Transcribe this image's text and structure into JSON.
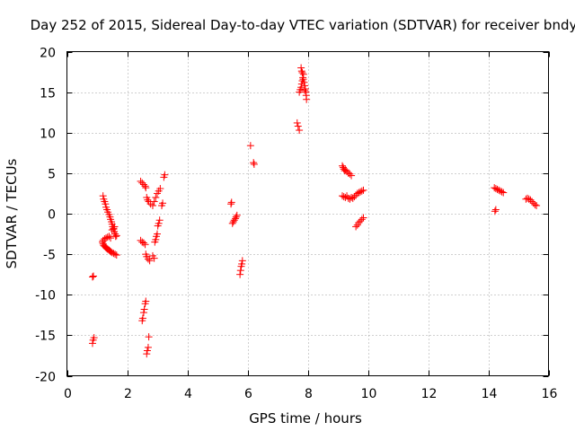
{
  "chart_data": {
    "type": "scatter",
    "title": "Day 252 of 2015, Sidereal Day-to-day VTEC variation (SDTVAR) for receiver bndy",
    "xlabel": "GPS time / hours",
    "ylabel": "SDTVAR / TECUs",
    "xlim": [
      0,
      16
    ],
    "ylim": [
      -20,
      20
    ],
    "xticks": [
      0,
      2,
      4,
      6,
      8,
      10,
      12,
      14,
      16
    ],
    "yticks": [
      -20,
      -15,
      -10,
      -5,
      0,
      5,
      10,
      15,
      20
    ],
    "xtick_labels": [
      "0",
      "2",
      "4",
      "6",
      "8",
      "10",
      "12",
      "14",
      "16"
    ],
    "ytick_labels": [
      "-20",
      "-15",
      "-10",
      "-5",
      "0",
      "5",
      "10",
      "15",
      "20"
    ],
    "grid": true,
    "marker": "+",
    "color": "#ff0000",
    "series": [
      {
        "name": "SDTVAR",
        "points": [
          [
            0.85,
            -7.8
          ],
          [
            0.88,
            -7.7
          ],
          [
            0.85,
            -16.0
          ],
          [
            0.87,
            -15.6
          ],
          [
            0.9,
            -15.3
          ],
          [
            1.2,
            2.2
          ],
          [
            1.22,
            1.8
          ],
          [
            1.25,
            1.5
          ],
          [
            1.28,
            1.2
          ],
          [
            1.3,
            0.8
          ],
          [
            1.33,
            0.5
          ],
          [
            1.36,
            0.2
          ],
          [
            1.4,
            -0.1
          ],
          [
            1.43,
            -0.4
          ],
          [
            1.45,
            -0.7
          ],
          [
            1.48,
            -1.0
          ],
          [
            1.5,
            -1.3
          ],
          [
            1.52,
            -1.6
          ],
          [
            1.55,
            -1.9
          ],
          [
            1.57,
            -2.2
          ],
          [
            1.6,
            -2.5
          ],
          [
            1.62,
            -2.8
          ],
          [
            1.65,
            -2.7
          ],
          [
            1.18,
            -3.5
          ],
          [
            1.2,
            -3.7
          ],
          [
            1.22,
            -3.9
          ],
          [
            1.25,
            -4.0
          ],
          [
            1.28,
            -4.1
          ],
          [
            1.3,
            -4.2
          ],
          [
            1.33,
            -4.3
          ],
          [
            1.36,
            -4.4
          ],
          [
            1.4,
            -4.5
          ],
          [
            1.43,
            -4.6
          ],
          [
            1.46,
            -4.7
          ],
          [
            1.5,
            -4.8
          ],
          [
            1.55,
            -4.9
          ],
          [
            1.6,
            -5.0
          ],
          [
            1.65,
            -5.1
          ],
          [
            1.2,
            -3.3
          ],
          [
            1.25,
            -3.1
          ],
          [
            1.3,
            -3.0
          ],
          [
            1.35,
            -2.9
          ],
          [
            1.4,
            -2.8
          ],
          [
            1.45,
            -3.0
          ],
          [
            1.5,
            -2.0
          ],
          [
            1.55,
            -1.8
          ],
          [
            1.58,
            -1.6
          ],
          [
            2.45,
            4.0
          ],
          [
            2.5,
            3.8
          ],
          [
            2.55,
            3.6
          ],
          [
            2.6,
            3.4
          ],
          [
            2.62,
            3.2
          ],
          [
            2.65,
            2.0
          ],
          [
            2.68,
            1.7
          ],
          [
            2.72,
            1.5
          ],
          [
            2.78,
            1.2
          ],
          [
            2.85,
            1.0
          ],
          [
            2.9,
            1.5
          ],
          [
            2.95,
            2.0
          ],
          [
            3.0,
            2.5
          ],
          [
            3.05,
            2.8
          ],
          [
            3.1,
            3.1
          ],
          [
            3.22,
            4.5
          ],
          [
            3.25,
            4.8
          ],
          [
            3.15,
            1.0
          ],
          [
            3.18,
            1.3
          ],
          [
            2.45,
            -3.3
          ],
          [
            2.5,
            -3.5
          ],
          [
            2.55,
            -3.6
          ],
          [
            2.6,
            -3.8
          ],
          [
            2.62,
            -5.0
          ],
          [
            2.65,
            -5.3
          ],
          [
            2.7,
            -5.6
          ],
          [
            2.75,
            -5.8
          ],
          [
            2.85,
            -5.2
          ],
          [
            2.9,
            -5.5
          ],
          [
            2.92,
            -3.5
          ],
          [
            2.95,
            -3.2
          ],
          [
            2.97,
            -2.8
          ],
          [
            3.0,
            -2.5
          ],
          [
            3.02,
            -1.5
          ],
          [
            3.05,
            -1.2
          ],
          [
            3.08,
            -0.8
          ],
          [
            2.5,
            -13.2
          ],
          [
            2.52,
            -12.9
          ],
          [
            2.55,
            -12.2
          ],
          [
            2.57,
            -11.8
          ],
          [
            2.6,
            -11.1
          ],
          [
            2.62,
            -10.8
          ],
          [
            2.65,
            -17.3
          ],
          [
            2.67,
            -16.9
          ],
          [
            2.7,
            -16.5
          ],
          [
            2.72,
            -15.2
          ],
          [
            5.45,
            1.2
          ],
          [
            5.47,
            1.4
          ],
          [
            5.5,
            -1.2
          ],
          [
            5.53,
            -1.0
          ],
          [
            5.56,
            -0.8
          ],
          [
            5.6,
            -0.6
          ],
          [
            5.62,
            -0.4
          ],
          [
            5.65,
            -0.2
          ],
          [
            5.75,
            -7.5
          ],
          [
            5.77,
            -7.0
          ],
          [
            5.79,
            -6.5
          ],
          [
            5.81,
            -6.2
          ],
          [
            5.83,
            -5.8
          ],
          [
            6.1,
            8.4
          ],
          [
            6.2,
            6.3
          ],
          [
            6.22,
            6.1
          ],
          [
            7.65,
            11.2
          ],
          [
            7.68,
            10.8
          ],
          [
            7.72,
            10.3
          ],
          [
            7.72,
            15.0
          ],
          [
            7.75,
            15.3
          ],
          [
            7.78,
            15.6
          ],
          [
            7.8,
            16.0
          ],
          [
            7.82,
            16.4
          ],
          [
            7.84,
            16.8
          ],
          [
            7.86,
            17.2
          ],
          [
            7.8,
            17.6
          ],
          [
            7.78,
            18.0
          ],
          [
            7.82,
            17.4
          ],
          [
            7.85,
            16.6
          ],
          [
            7.88,
            16.2
          ],
          [
            7.9,
            15.8
          ],
          [
            7.92,
            15.4
          ],
          [
            7.94,
            15.0
          ],
          [
            7.95,
            14.6
          ],
          [
            7.96,
            14.1
          ],
          [
            7.9,
            15.2
          ],
          [
            9.15,
            5.9
          ],
          [
            9.18,
            5.7
          ],
          [
            9.2,
            5.5
          ],
          [
            9.23,
            5.3
          ],
          [
            9.26,
            5.4
          ],
          [
            9.3,
            5.2
          ],
          [
            9.35,
            5.0
          ],
          [
            9.4,
            4.9
          ],
          [
            9.45,
            4.7
          ],
          [
            9.15,
            2.2
          ],
          [
            9.2,
            2.1
          ],
          [
            9.25,
            2.0
          ],
          [
            9.3,
            2.2
          ],
          [
            9.35,
            1.9
          ],
          [
            9.4,
            1.8
          ],
          [
            9.45,
            2.0
          ],
          [
            9.5,
            1.9
          ],
          [
            9.55,
            2.1
          ],
          [
            9.6,
            2.3
          ],
          [
            9.65,
            2.5
          ],
          [
            9.7,
            2.6
          ],
          [
            9.75,
            2.7
          ],
          [
            9.8,
            2.8
          ],
          [
            9.85,
            2.9
          ],
          [
            9.6,
            -1.6
          ],
          [
            9.65,
            -1.4
          ],
          [
            9.7,
            -1.1
          ],
          [
            9.75,
            -0.9
          ],
          [
            9.8,
            -0.7
          ],
          [
            9.85,
            -0.5
          ],
          [
            14.2,
            3.2
          ],
          [
            14.25,
            3.1
          ],
          [
            14.3,
            3.0
          ],
          [
            14.35,
            2.9
          ],
          [
            14.4,
            2.8
          ],
          [
            14.45,
            2.7
          ],
          [
            14.5,
            2.6
          ],
          [
            14.22,
            0.3
          ],
          [
            14.25,
            0.5
          ],
          [
            15.25,
            1.8
          ],
          [
            15.3,
            1.9
          ],
          [
            15.35,
            1.8
          ],
          [
            15.4,
            1.7
          ],
          [
            15.45,
            1.5
          ],
          [
            15.5,
            1.3
          ],
          [
            15.55,
            1.1
          ],
          [
            15.6,
            1.0
          ]
        ]
      }
    ]
  }
}
